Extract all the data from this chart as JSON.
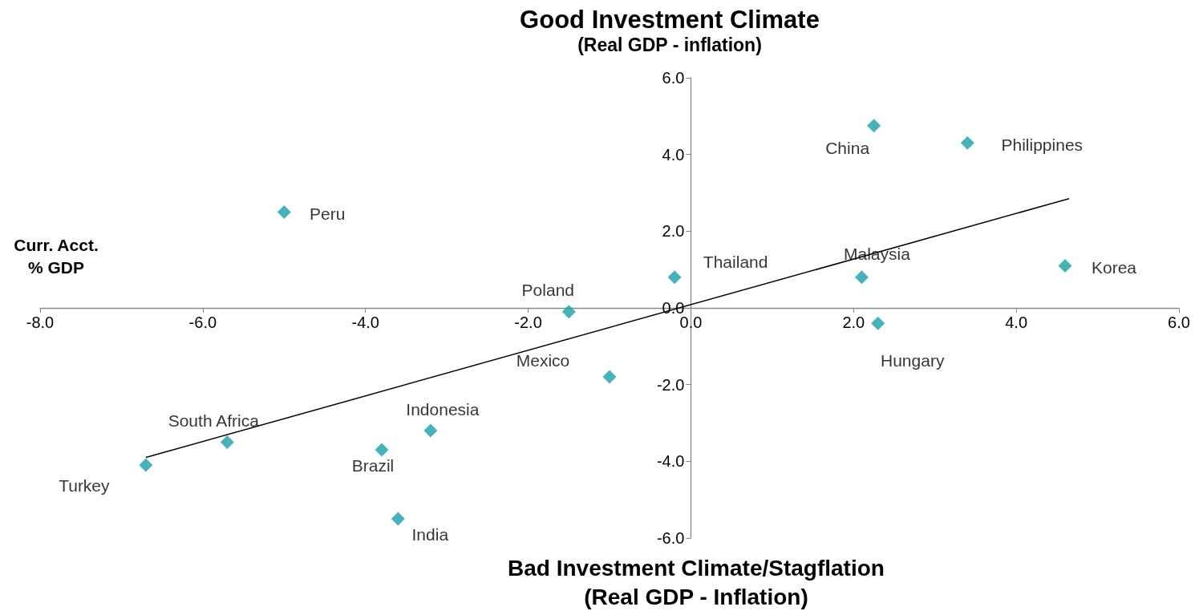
{
  "chart_data": {
    "type": "scatter",
    "title": "Good Investment Climate",
    "subtitle": "(Real GDP - inflation)",
    "xlabel": "Bad Investment Climate/Stagflation\n(Real GDP - Inflation)",
    "ylabel": "Curr. Acct.\n% GDP",
    "series": [
      {
        "type": "scatter",
        "color": "#17a0a8",
        "x": [
          2.25,
          3.4,
          -5.0,
          -0.2,
          2.1,
          4.6,
          -1.5,
          2.3,
          -1.0,
          -3.2,
          -5.7,
          -3.8,
          -6.7,
          -3.6
        ],
        "values": [
          4.75,
          4.3,
          2.5,
          0.8,
          0.8,
          1.1,
          -0.1,
          -0.4,
          -1.8,
          -3.2,
          -3.5,
          -3.7,
          -4.1,
          -5.5
        ]
      },
      {
        "type": "line",
        "color": "#000000",
        "x": [
          -6.7,
          4.65
        ],
        "values": [
          -3.9,
          2.85
        ],
        "marker": "none"
      }
    ],
    "annotations": [
      {
        "text": "China",
        "x": 2.25,
        "y": 4.75
      },
      {
        "text": "Philippines",
        "x": 3.4,
        "y": 4.3
      },
      {
        "text": "Peru",
        "x": -5.0,
        "y": 2.5
      },
      {
        "text": "Thailand",
        "x": -0.2,
        "y": 0.8
      },
      {
        "text": "Malaysia",
        "x": 2.1,
        "y": 0.8
      },
      {
        "text": "Korea",
        "x": 4.6,
        "y": 1.1
      },
      {
        "text": "Poland",
        "x": -1.5,
        "y": -0.1
      },
      {
        "text": "Hungary",
        "x": 2.3,
        "y": -0.4
      },
      {
        "text": "Mexico",
        "x": -1.0,
        "y": -1.8
      },
      {
        "text": "Indonesia",
        "x": -3.2,
        "y": -3.2
      },
      {
        "text": "South Africa",
        "x": -5.7,
        "y": -3.5
      },
      {
        "text": "Brazil",
        "x": -3.8,
        "y": -3.7
      },
      {
        "text": "Turkey",
        "x": -6.7,
        "y": -4.1
      },
      {
        "text": "India",
        "x": -3.6,
        "y": -5.5
      }
    ],
    "xlim": [
      -8,
      6
    ],
    "ylim": [
      -6,
      6
    ],
    "xticks": [
      {
        "value": -8,
        "label": "-8.0"
      },
      {
        "value": -6,
        "label": "-6.0"
      },
      {
        "value": -4,
        "label": "-4.0"
      },
      {
        "value": -2,
        "label": "-2.0"
      },
      {
        "value": 0,
        "label": "0.0"
      },
      {
        "value": 2,
        "label": "2.0"
      },
      {
        "value": 4,
        "label": "4.0"
      },
      {
        "value": 6,
        "label": "6.0"
      }
    ],
    "yticks": [
      {
        "value": -6,
        "label": "-6.0"
      },
      {
        "value": -4,
        "label": "-4.0"
      },
      {
        "value": -2,
        "label": "-2.0"
      },
      {
        "value": 0,
        "label": "0.0"
      },
      {
        "value": 2,
        "label": "2.0"
      },
      {
        "value": 4,
        "label": "4.0"
      },
      {
        "value": 6,
        "label": "6.0"
      }
    ],
    "marker": "diamond"
  }
}
